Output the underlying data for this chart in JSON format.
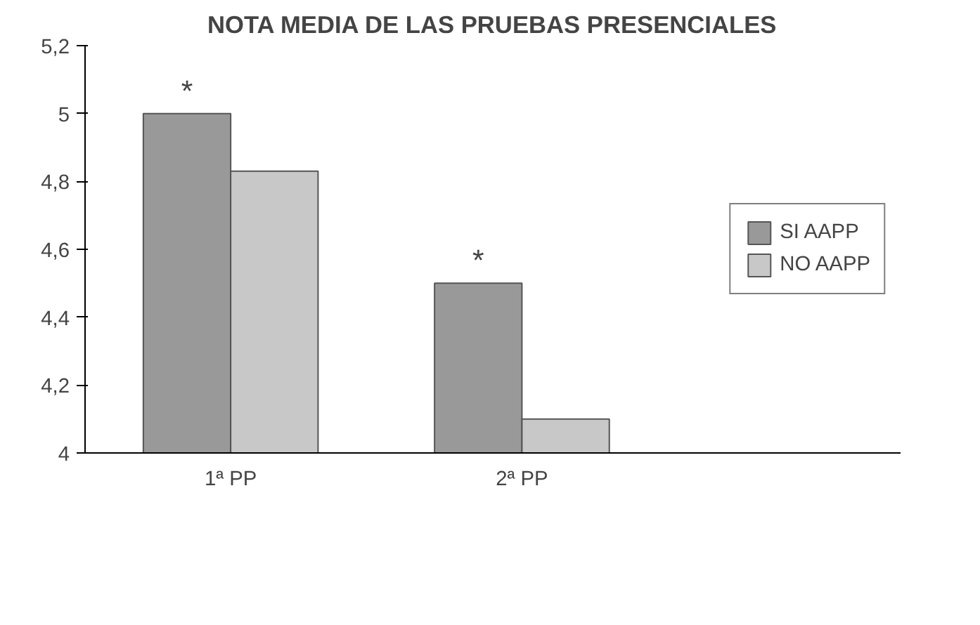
{
  "chart_data": {
    "type": "bar",
    "title": "NOTA MEDIA DE LAS PRUEBAS PRESENCIALES",
    "categories": [
      "1ª PP",
      "2ª PP"
    ],
    "series": [
      {
        "name": "SI AAPP",
        "color": "#999999",
        "values": [
          5.0,
          4.5
        ]
      },
      {
        "name": "NO AAPP",
        "color": "#c8c8c8",
        "values": [
          4.83,
          4.1
        ]
      }
    ],
    "ylim": [
      4,
      5.2
    ],
    "yticks": [
      4,
      {
        "value": 4.2,
        "label": "4,2"
      },
      {
        "value": 4.4,
        "label": "4,4"
      },
      {
        "value": 4.6,
        "label": "4,6"
      },
      {
        "value": 4.8,
        "label": "4,8"
      },
      5,
      {
        "value": 5.2,
        "label": "5,2"
      }
    ],
    "annotations": [
      "*",
      "*"
    ],
    "grid": false,
    "legend": "right"
  }
}
